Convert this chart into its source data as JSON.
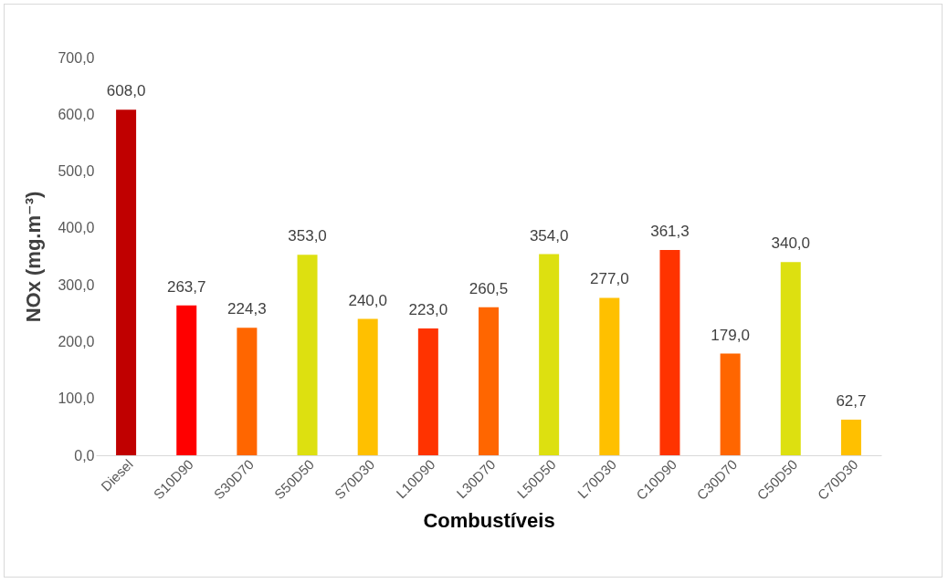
{
  "chart_data": {
    "type": "bar",
    "xlabel": "Combustíveis",
    "ylabel": "NOx (mg.m⁻³)",
    "categories": [
      "Diesel",
      "S10D90",
      "S30D70",
      "S50D50",
      "S70D30",
      "L10D90",
      "L30D70",
      "L50D50",
      "L70D30",
      "C10D90",
      "C30D70",
      "C50D50",
      "C70D30"
    ],
    "values": [
      608.0,
      263.7,
      224.3,
      353.0,
      240.0,
      223.0,
      260.5,
      354.0,
      277.0,
      361.3,
      179.0,
      340.0,
      62.7
    ],
    "value_labels": [
      "608,0",
      "263,7",
      "224,3",
      "353,0",
      "240,0",
      "223,0",
      "260,5",
      "354,0",
      "277,0",
      "361,3",
      "179,0",
      "340,0",
      "62,7"
    ],
    "colors": [
      "#c00000",
      "#ff0000",
      "#ff6600",
      "#dde010",
      "#ffc000",
      "#ff3300",
      "#ff6600",
      "#dde010",
      "#ffc000",
      "#ff3300",
      "#ff6600",
      "#dde010",
      "#ffc000"
    ],
    "ylim": [
      0,
      700
    ],
    "yticks": [
      {
        "value": 0,
        "label": "0,0"
      },
      {
        "value": 100,
        "label": "100,0"
      },
      {
        "value": 200,
        "label": "200,0"
      },
      {
        "value": 300,
        "label": "300,0"
      },
      {
        "value": 400,
        "label": "400,0"
      },
      {
        "value": 500,
        "label": "500,0"
      },
      {
        "value": 600,
        "label": "600,0"
      },
      {
        "value": 700,
        "label": "700,0"
      }
    ],
    "grid": false,
    "legend": false
  }
}
